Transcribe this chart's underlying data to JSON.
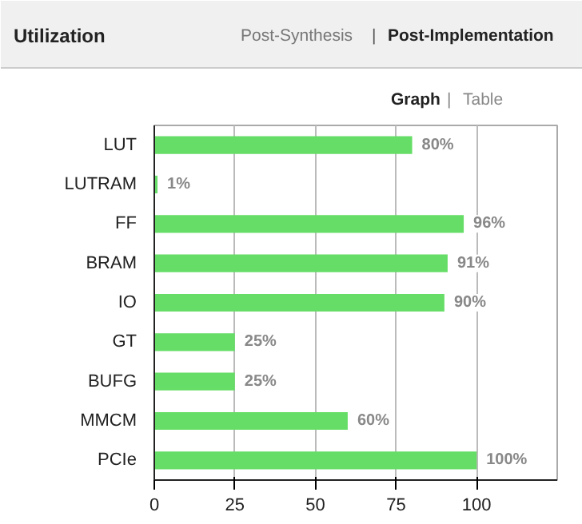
{
  "chart_data": {
    "type": "bar",
    "orientation": "horizontal",
    "title": "Utilization",
    "annotations": [
      "Post-Synthesis",
      "|",
      "Post-Implementation",
      "Graph",
      "|",
      "Table"
    ],
    "categories": [
      "LUT",
      "LUTRAM",
      "FF",
      "BRAM",
      "IO",
      "GT",
      "BUFG",
      "MMCM",
      "PCIe"
    ],
    "values": [
      80,
      1,
      96,
      91,
      90,
      25,
      25,
      60,
      100
    ],
    "value_labels": [
      "80%",
      "1%",
      "96%",
      "91%",
      "90%",
      "25%",
      "25%",
      "60%",
      "100%"
    ],
    "color": "#66dd66",
    "xlim": [
      0,
      125
    ],
    "xticks": [
      0,
      25,
      50,
      75,
      100
    ],
    "grid": "x"
  }
}
